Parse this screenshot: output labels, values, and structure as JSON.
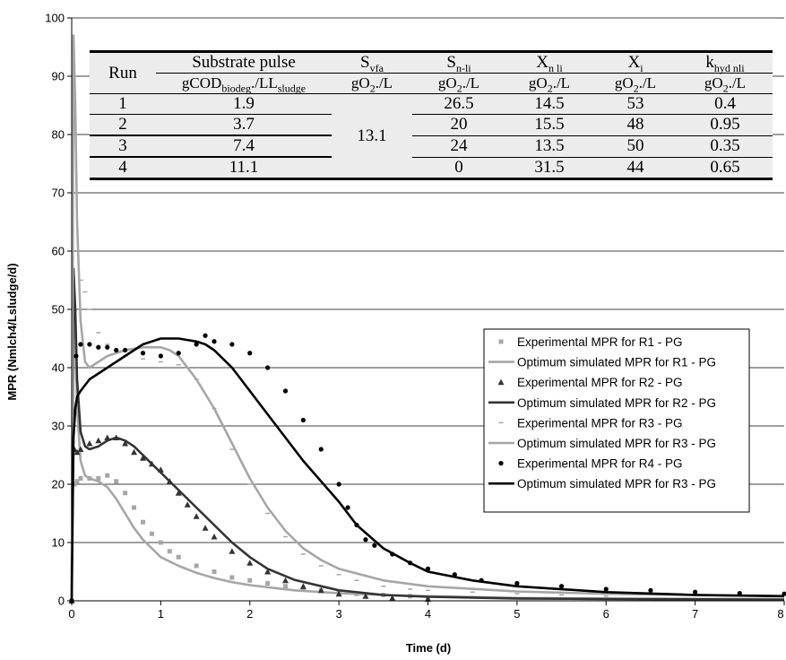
{
  "chart_data": {
    "type": "scatter",
    "xlabel": "Time (d)",
    "ylabel": "MPR (Nmlch4/Lsludge/d)",
    "xlim": [
      0,
      8
    ],
    "ylim": [
      0,
      100
    ],
    "x_ticks": [
      "0",
      "1",
      "2",
      "3",
      "4",
      "5",
      "6",
      "7",
      "8"
    ],
    "y_ticks": [
      "0",
      "10",
      "20",
      "30",
      "40",
      "50",
      "60",
      "70",
      "80",
      "90",
      "100"
    ],
    "grid": "horizontal",
    "legend_placement": "right",
    "series": [
      {
        "name": "Experimental MPR for R1 - PG",
        "kind": "square-markers",
        "color": "#a6a6a6",
        "x": [
          0.0,
          0.03,
          0.06,
          0.1,
          0.2,
          0.3,
          0.4,
          0.5,
          0.6,
          0.7,
          0.8,
          0.9,
          1.0,
          1.1,
          1.2,
          1.4,
          1.6,
          1.8,
          2.0,
          2.2,
          2.4,
          2.6,
          2.8,
          3.0,
          3.2,
          3.5,
          3.8,
          4.0
        ],
        "y": [
          0.0,
          20.0,
          20.5,
          21.0,
          21.0,
          21.0,
          21.5,
          20.5,
          18.5,
          16.0,
          13.5,
          11.5,
          10.0,
          8.5,
          7.5,
          6.0,
          5.0,
          4.0,
          3.5,
          3.0,
          2.5,
          2.0,
          1.8,
          1.5,
          1.2,
          1.0,
          0.8,
          0.6
        ]
      },
      {
        "name": "Optimum simulated MPR for R1 - PG",
        "kind": "line",
        "color": "#a6a6a6",
        "x": [
          0.0,
          0.02,
          0.04,
          0.06,
          0.1,
          0.15,
          0.2,
          0.3,
          0.4,
          0.5,
          0.6,
          0.7,
          0.8,
          0.9,
          1.0,
          1.2,
          1.4,
          1.6,
          1.8,
          2.0,
          2.5,
          3.0,
          3.5,
          4.0,
          5.0,
          6.0,
          8.0
        ],
        "y": [
          0.0,
          57.0,
          46.0,
          33.0,
          24.0,
          21.5,
          21.0,
          20.5,
          19.5,
          17.5,
          15.0,
          12.5,
          10.5,
          9.0,
          7.5,
          6.0,
          4.8,
          3.9,
          3.2,
          2.7,
          1.8,
          1.3,
          1.0,
          0.8,
          0.5,
          0.4,
          0.3
        ]
      },
      {
        "name": "Experimental MPR for R2 - PG",
        "kind": "triangle-markers",
        "color": "#333333",
        "x": [
          0.0,
          0.03,
          0.06,
          0.1,
          0.2,
          0.3,
          0.4,
          0.5,
          0.6,
          0.7,
          0.8,
          0.9,
          1.0,
          1.1,
          1.2,
          1.3,
          1.4,
          1.5,
          1.6,
          1.8,
          2.0,
          2.2,
          2.4,
          2.6,
          2.8,
          3.0,
          3.3,
          3.6,
          4.0
        ],
        "y": [
          0.0,
          26.0,
          25.5,
          26.0,
          27.0,
          27.5,
          28.0,
          28.0,
          27.0,
          25.5,
          24.5,
          23.5,
          22.5,
          20.5,
          18.5,
          16.5,
          14.5,
          12.5,
          11.0,
          8.5,
          6.5,
          5.0,
          3.5,
          2.5,
          1.8,
          1.2,
          0.8,
          0.5,
          0.3
        ]
      },
      {
        "name": "Optimum simulated MPR for R2 - PG",
        "kind": "line",
        "color": "#333333",
        "x": [
          0.0,
          0.02,
          0.04,
          0.06,
          0.1,
          0.15,
          0.2,
          0.3,
          0.4,
          0.5,
          0.6,
          0.7,
          0.8,
          0.9,
          1.0,
          1.1,
          1.2,
          1.4,
          1.6,
          1.8,
          2.0,
          2.2,
          2.5,
          3.0,
          3.5,
          4.0,
          5.0,
          6.0,
          8.0
        ],
        "y": [
          0.0,
          57.0,
          50.0,
          38.0,
          29.0,
          26.5,
          26.0,
          26.5,
          27.5,
          28.0,
          27.5,
          26.5,
          25.0,
          23.5,
          22.0,
          20.5,
          19.0,
          16.0,
          13.0,
          10.0,
          7.5,
          5.5,
          3.6,
          1.8,
          1.0,
          0.7,
          0.4,
          0.3,
          0.2
        ]
      },
      {
        "name": "Experimental MPR for R3 - PG",
        "kind": "dash-markers",
        "color": "#a6a6a6",
        "x": [
          0.0,
          0.05,
          0.1,
          0.15,
          0.2,
          0.3,
          0.4,
          0.5,
          0.6,
          0.8,
          1.0,
          1.2,
          1.4,
          1.6,
          1.8,
          2.0,
          2.2,
          2.4,
          2.6,
          2.8,
          3.0,
          3.2,
          3.5,
          3.8,
          4.0,
          4.5,
          5.0,
          5.5,
          6.0
        ],
        "y": [
          0.0,
          32.0,
          55.0,
          53.0,
          50.0,
          46.0,
          44.0,
          43.0,
          42.0,
          41.5,
          41.0,
          40.5,
          38.0,
          33.0,
          26.0,
          20.0,
          15.0,
          11.0,
          8.0,
          6.0,
          4.5,
          3.5,
          2.5,
          2.0,
          1.8,
          1.5,
          1.2,
          1.0,
          0.8
        ]
      },
      {
        "name": "Optimum simulated MPR for R3 - PG",
        "kind": "line",
        "color": "#a6a6a6",
        "x": [
          0.0,
          0.02,
          0.04,
          0.06,
          0.1,
          0.15,
          0.2,
          0.3,
          0.4,
          0.6,
          0.8,
          1.0,
          1.1,
          1.2,
          1.4,
          1.6,
          1.8,
          2.0,
          2.2,
          2.4,
          2.6,
          2.8,
          3.0,
          3.5,
          4.0,
          5.0,
          6.0,
          8.0
        ],
        "y": [
          0.0,
          97.0,
          85.0,
          65.0,
          48.0,
          41.0,
          40.0,
          41.0,
          42.0,
          43.0,
          43.5,
          43.5,
          43.0,
          42.0,
          38.0,
          33.0,
          27.0,
          21.0,
          16.0,
          12.0,
          9.0,
          7.0,
          5.5,
          3.5,
          2.5,
          1.6,
          1.2,
          0.8
        ]
      },
      {
        "name": "Experimental MPR for R4 - PG",
        "kind": "circle-markers",
        "color": "#000000",
        "x": [
          0.0,
          0.05,
          0.1,
          0.2,
          0.3,
          0.4,
          0.5,
          0.6,
          0.8,
          1.0,
          1.2,
          1.4,
          1.5,
          1.6,
          1.8,
          2.0,
          2.2,
          2.4,
          2.6,
          2.8,
          3.0,
          3.1,
          3.2,
          3.3,
          3.4,
          3.6,
          3.8,
          4.0,
          4.3,
          4.6,
          5.0,
          5.5,
          6.0,
          6.5,
          7.0,
          7.5,
          8.0
        ],
        "y": [
          0.0,
          42.0,
          44.0,
          44.0,
          43.5,
          43.5,
          43.0,
          43.0,
          42.5,
          42.0,
          42.5,
          44.0,
          45.5,
          44.5,
          44.0,
          42.5,
          40.0,
          36.0,
          31.0,
          26.0,
          20.0,
          16.0,
          13.0,
          10.5,
          9.5,
          8.0,
          6.5,
          5.5,
          4.5,
          3.5,
          3.0,
          2.5,
          2.0,
          1.8,
          1.5,
          1.3,
          1.2
        ]
      },
      {
        "name": "Optimum simulated MPR for R3 - PG",
        "kind": "line",
        "color": "#000000",
        "x": [
          0.0,
          0.02,
          0.04,
          0.06,
          0.1,
          0.2,
          0.4,
          0.6,
          0.8,
          1.0,
          1.2,
          1.4,
          1.5,
          1.6,
          1.8,
          2.0,
          2.2,
          2.4,
          2.6,
          2.8,
          3.0,
          3.2,
          3.5,
          3.8,
          4.0,
          4.5,
          5.0,
          6.0,
          7.0,
          8.0
        ],
        "y": [
          0.0,
          28.0,
          33.0,
          35.0,
          36.0,
          38.0,
          40.0,
          42.0,
          44.0,
          45.0,
          45.0,
          44.5,
          44.0,
          43.0,
          40.0,
          36.0,
          32.0,
          28.0,
          24.0,
          20.5,
          17.0,
          13.0,
          9.0,
          6.5,
          5.0,
          3.5,
          2.5,
          1.5,
          1.0,
          0.8
        ]
      }
    ]
  },
  "table": {
    "header": {
      "run": "Run",
      "substrate": "Substrate pulse",
      "svfa": {
        "main": "S",
        "sub": "vfa"
      },
      "snli": {
        "main": "S",
        "sub": "n-li"
      },
      "xnli": {
        "main": "X",
        "sub": "n li"
      },
      "xi": {
        "main": "X",
        "sub": "i"
      },
      "khyd": {
        "main": "k",
        "sub": "hyd nli"
      }
    },
    "units": {
      "substrate": {
        "a": "gCOD",
        "sub1": "biodeg",
        "b": "./L",
        "sub2": "sludge"
      },
      "o2": {
        "a": "gO",
        "sub": "2",
        "b": "./L"
      }
    },
    "svfa_value": "13.1",
    "rows": [
      {
        "run": "1",
        "substrate": "1.9",
        "snli": "26.5",
        "xnli": "14.5",
        "xi": "53",
        "khyd": "0.4"
      },
      {
        "run": "2",
        "substrate": "3.7",
        "snli": "20",
        "xnli": "15.5",
        "xi": "48",
        "khyd": "0.95"
      },
      {
        "run": "3",
        "substrate": "7.4",
        "snli": "24",
        "xnli": "13.5",
        "xi": "50",
        "khyd": "0.35"
      },
      {
        "run": "4",
        "substrate": "11.1",
        "snli": "0",
        "xnli": "31.5",
        "xi": "44",
        "khyd": "0.65"
      }
    ]
  }
}
